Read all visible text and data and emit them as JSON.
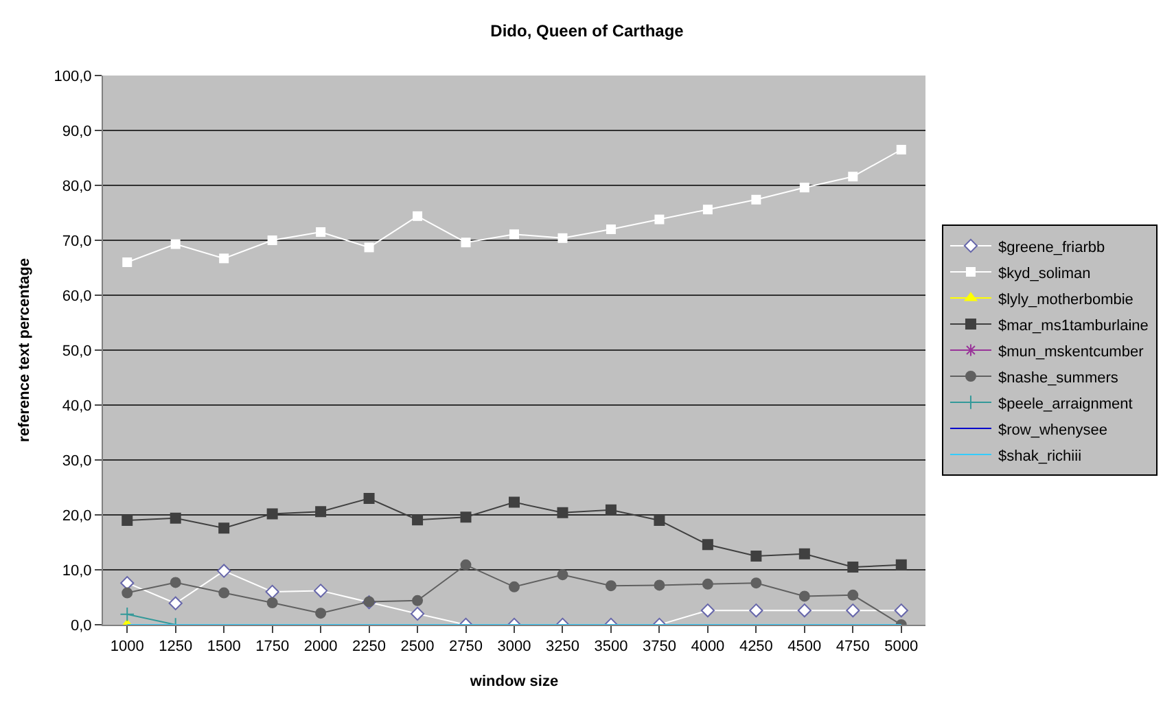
{
  "chart_data": {
    "type": "line",
    "title": "Dido, Queen of Carthage",
    "xlabel": "window size",
    "ylabel": "reference text percentage",
    "categories": [
      "1000",
      "1250",
      "1500",
      "1750",
      "2000",
      "2250",
      "2500",
      "2750",
      "3000",
      "3250",
      "3500",
      "3750",
      "4000",
      "4250",
      "4500",
      "4750",
      "5000"
    ],
    "ylim": [
      0,
      100
    ],
    "yticks": [
      {
        "value": 0,
        "label": "0,0"
      },
      {
        "value": 10,
        "label": "10,0"
      },
      {
        "value": 20,
        "label": "20,0"
      },
      {
        "value": 30,
        "label": "30,0"
      },
      {
        "value": 40,
        "label": "40,0"
      },
      {
        "value": 50,
        "label": "50,0"
      },
      {
        "value": 60,
        "label": "60,0"
      },
      {
        "value": 70,
        "label": "70,0"
      },
      {
        "value": 80,
        "label": "80,0"
      },
      {
        "value": 90,
        "label": "90,0"
      },
      {
        "value": 100,
        "label": "100,0"
      }
    ],
    "grid": "y",
    "legend": "right",
    "series": [
      {
        "name": "$greene_friarbb",
        "color": "#ffffff",
        "marker": "diamond",
        "values": [
          7.6,
          3.9,
          9.8,
          6.0,
          6.2,
          4.1,
          2.0,
          0,
          0,
          0,
          0,
          0,
          2.6,
          2.6,
          2.6,
          2.6,
          2.6
        ]
      },
      {
        "name": "$kyd_soliman",
        "color": "#ffffff",
        "marker": "square",
        "values": [
          66.0,
          69.3,
          66.7,
          70.0,
          71.5,
          68.7,
          74.4,
          69.6,
          71.1,
          70.4,
          72.0,
          73.8,
          75.6,
          77.4,
          79.6,
          81.6,
          86.5
        ]
      },
      {
        "name": "$lyly_motherbombie",
        "color": "#ffff00",
        "marker": "triangle",
        "values": [
          0,
          null,
          null,
          null,
          null,
          null,
          null,
          null,
          null,
          null,
          null,
          null,
          null,
          null,
          null,
          null,
          null
        ]
      },
      {
        "name": "$mar_ms1tamburlaine",
        "color": "#404040",
        "marker": "square",
        "values": [
          19.0,
          19.4,
          17.6,
          20.2,
          20.6,
          23.0,
          19.1,
          19.6,
          22.3,
          20.4,
          20.9,
          19.0,
          14.6,
          12.5,
          12.9,
          10.5,
          10.9
        ]
      },
      {
        "name": "$mun_mskentcumber",
        "color": "#993399",
        "marker": "star",
        "values": [
          null,
          null,
          null,
          null,
          null,
          null,
          null,
          null,
          null,
          null,
          null,
          null,
          null,
          null,
          null,
          null,
          null
        ]
      },
      {
        "name": "$nashe_summers",
        "color": "#606060",
        "marker": "circle",
        "values": [
          5.8,
          7.7,
          5.8,
          4.0,
          2.1,
          4.2,
          4.4,
          10.9,
          6.9,
          9.1,
          7.1,
          7.2,
          7.4,
          7.6,
          5.2,
          5.4,
          0
        ]
      },
      {
        "name": "$peele_arraignment",
        "color": "#339999",
        "marker": "cross",
        "values": [
          1.9,
          0,
          null,
          null,
          null,
          null,
          null,
          null,
          null,
          null,
          null,
          null,
          null,
          null,
          null,
          null,
          null
        ]
      },
      {
        "name": "$row_whenysee",
        "color": "#0000cc",
        "marker": "none",
        "values": [
          null,
          null,
          null,
          null,
          null,
          null,
          null,
          null,
          null,
          null,
          null,
          null,
          null,
          null,
          null,
          null,
          null
        ]
      },
      {
        "name": "$shak_richiii",
        "color": "#33ccff",
        "marker": "none",
        "values": [
          0,
          0,
          0,
          0,
          0,
          0,
          0,
          0,
          0,
          0,
          0,
          0,
          0,
          0,
          0,
          0,
          0
        ]
      }
    ]
  }
}
